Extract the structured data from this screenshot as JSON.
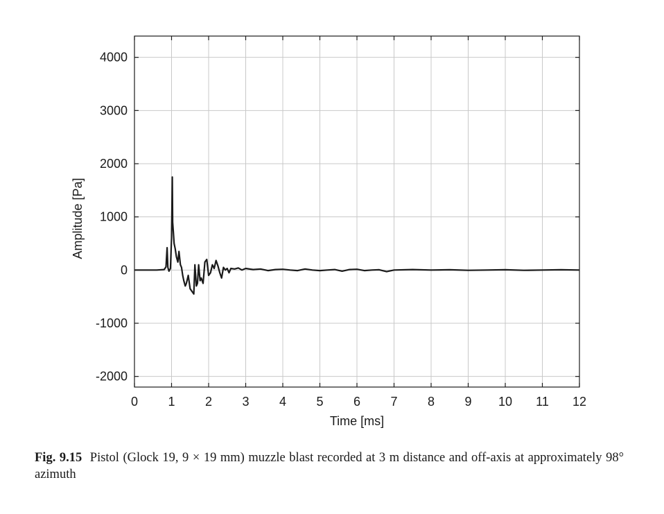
{
  "chart_data": {
    "type": "line",
    "title": "",
    "xlabel": "Time [ms]",
    "ylabel": "Amplitude [Pa]",
    "xlim": [
      0,
      12
    ],
    "ylim": [
      -2200,
      4400
    ],
    "xticks": [
      0,
      1,
      2,
      3,
      4,
      5,
      6,
      7,
      8,
      9,
      10,
      11,
      12
    ],
    "yticks": [
      -2000,
      -1000,
      0,
      1000,
      2000,
      3000,
      4000
    ],
    "grid": true,
    "series": [
      {
        "color": "#1a1a1a",
        "x": [
          0,
          0.3,
          0.6,
          0.8,
          0.85,
          0.88,
          0.9,
          0.93,
          0.97,
          1.0,
          1.02,
          1.03,
          1.05,
          1.07,
          1.1,
          1.13,
          1.17,
          1.2,
          1.24,
          1.27,
          1.3,
          1.33,
          1.37,
          1.4,
          1.45,
          1.5,
          1.55,
          1.6,
          1.63,
          1.67,
          1.7,
          1.73,
          1.77,
          1.8,
          1.85,
          1.9,
          1.95,
          2.0,
          2.05,
          2.1,
          2.15,
          2.2,
          2.25,
          2.3,
          2.35,
          2.4,
          2.45,
          2.5,
          2.55,
          2.6,
          2.7,
          2.8,
          2.9,
          3.0,
          3.2,
          3.4,
          3.6,
          3.8,
          4.0,
          4.2,
          4.4,
          4.6,
          4.8,
          5.0,
          5.2,
          5.4,
          5.6,
          5.8,
          6.0,
          6.2,
          6.4,
          6.6,
          6.8,
          7.0,
          7.5,
          8.0,
          8.5,
          9.0,
          9.5,
          10.0,
          10.5,
          11.0,
          11.5,
          12.0
        ],
        "y": [
          0,
          0,
          0,
          10,
          60,
          420,
          50,
          -20,
          30,
          600,
          1750,
          900,
          700,
          500,
          400,
          250,
          150,
          350,
          100,
          50,
          -100,
          -200,
          -300,
          -250,
          -100,
          -350,
          -400,
          -450,
          100,
          -300,
          -250,
          100,
          -200,
          -150,
          -250,
          150,
          200,
          -100,
          -50,
          100,
          30,
          180,
          80,
          -50,
          -150,
          50,
          0,
          30,
          -50,
          30,
          20,
          40,
          0,
          30,
          10,
          20,
          -10,
          10,
          15,
          0,
          -10,
          20,
          0,
          -10,
          0,
          10,
          -20,
          10,
          15,
          -10,
          0,
          5,
          -30,
          0,
          10,
          0,
          5,
          -5,
          0,
          5,
          -5,
          0,
          5,
          0
        ]
      }
    ]
  },
  "caption": {
    "figure_number": "Fig. 9.15",
    "text": "Pistol (Glock 19, 9 × 19 mm) muzzle blast recorded at 3 m distance and off-axis at approximately 98° azimuth"
  }
}
